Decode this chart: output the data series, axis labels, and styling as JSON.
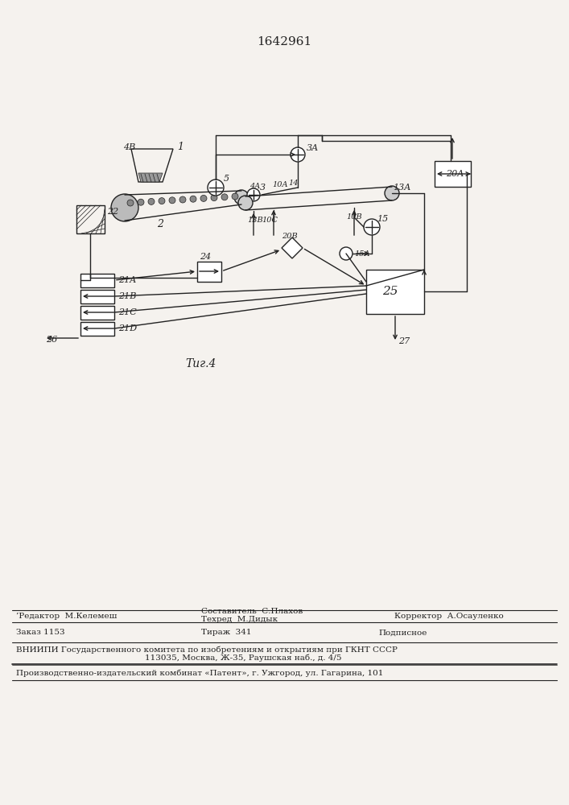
{
  "title": "1642961",
  "fig_label": "Τиг.4",
  "background_color": "#f5f2ee",
  "line_color": "#222222",
  "text_color": "#222222",
  "footer_editor": "’Редактор  М.Келемеш",
  "footer_composer": "Составитель  С.Плахов",
  "footer_techred": "Техред  М.Дидык",
  "footer_corrector": "Корректор  А.Осауленко",
  "footer_order": "Заказ 1153",
  "footer_tirazh": "Тираж  341",
  "footer_podp": "Подписное",
  "footer_vniip": "ВНИИПИ Государственного комитета по изобретениям и открытиям при ГКНТ СССР",
  "footer_addr": "113035, Москва, Ж-35, Раушская наб., д. 4/5",
  "footer_patent": "Производственно-издательский комбинат «Патент», г. Ужгород, ул. Гагарина, 101"
}
